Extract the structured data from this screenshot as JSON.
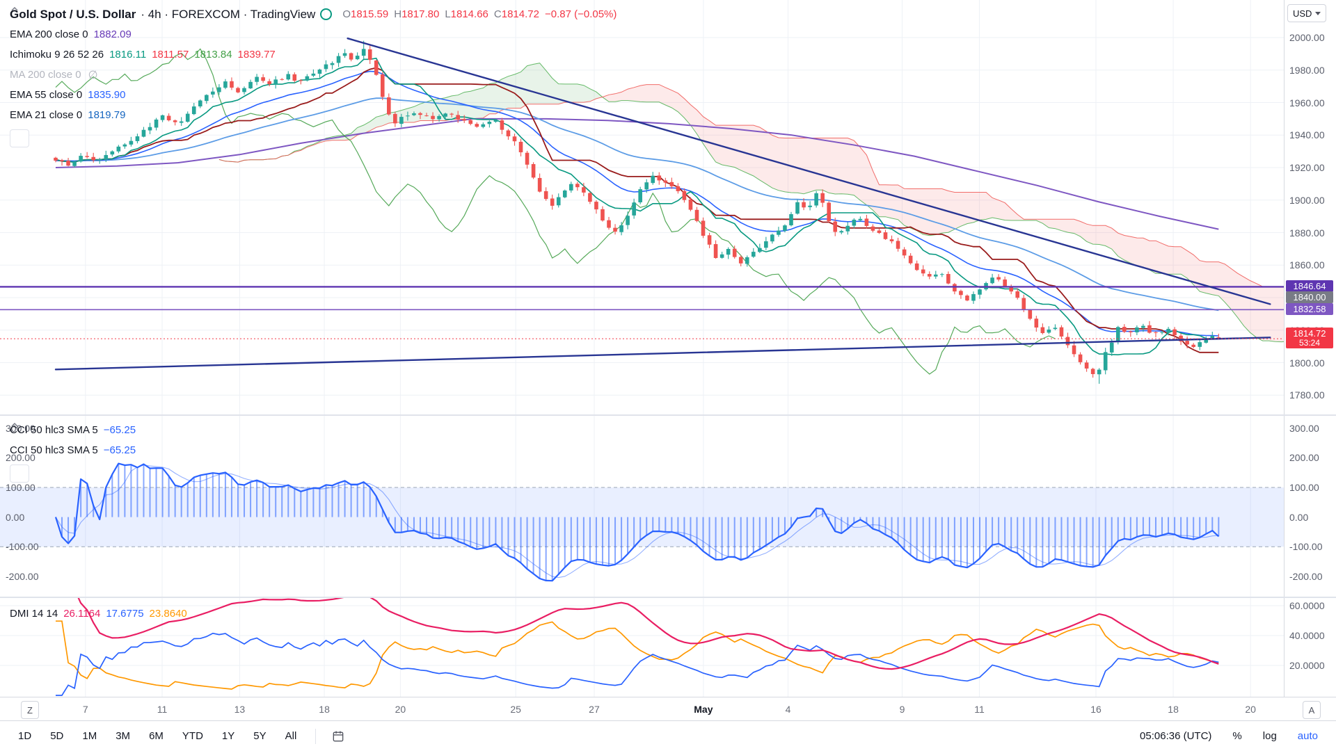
{
  "header": {
    "symbol": "Gold Spot / U.S. Dollar",
    "meta": "· 4h · FOREXCOM · TradingView",
    "ohlc": {
      "o_label": "O",
      "o": "1815.59",
      "h_label": "H",
      "h": "1817.80",
      "l_label": "L",
      "l": "1814.66",
      "c_label": "C",
      "c": "1814.72",
      "change": "−0.87 (−0.05%)"
    },
    "status_color": "#089981"
  },
  "indicators": {
    "ema200": {
      "label": "EMA 200 close 0",
      "value": "1882.09",
      "color": "#673ab7"
    },
    "ichimoku": {
      "label": "Ichimoku 9 26 52 26",
      "v1": "1816.11",
      "c1": "#089981",
      "v2": "1811.57",
      "c2": "#f23645",
      "v3": "1813.84",
      "c3": "#43a047",
      "v4": "1839.77",
      "c4": "#f23645"
    },
    "ma200": {
      "label": "MA 200 close 0",
      "hidden_icon": "∅"
    },
    "ema55": {
      "label": "EMA 55 close 0",
      "value": "1835.90",
      "color": "#2962ff"
    },
    "ema21": {
      "label": "EMA 21 close 0",
      "value": "1819.79",
      "color": "#1565c0"
    }
  },
  "cci_legend": {
    "row1_label": "CCI 50 hlc3 SMA 5",
    "row1_value": "−65.25",
    "row2_label": "CCI 50 hlc3 SMA 5",
    "row2_value": "−65.25",
    "value_color": "#2962ff"
  },
  "dmi_legend": {
    "label": "DMI 14 14",
    "adx": "26.1164",
    "adx_color": "#e91e63",
    "plus_di": "17.6775",
    "plus_color": "#2962ff",
    "minus_di": "23.8640",
    "minus_color": "#ff9800"
  },
  "price_scale": {
    "currency": "USD",
    "ticks": [
      "2000.00",
      "1980.00",
      "1960.00",
      "1940.00",
      "1920.00",
      "1900.00",
      "1880.00",
      "1860.00",
      "1840.00",
      "1820.00",
      "1800.00",
      "1780.00"
    ],
    "tags": [
      {
        "text": "1846.64",
        "price": 1846.64,
        "bg": "#5e35b1"
      },
      {
        "text": "1840.00",
        "price": 1840.0,
        "bg": "#787b86"
      },
      {
        "text": "1832.58",
        "price": 1832.58,
        "bg": "#7e57c2"
      },
      {
        "text": "1814.72",
        "price": 1814.72,
        "bg": "#f23645",
        "countdown": "53:24"
      }
    ],
    "cci_ticks": [
      "300.00",
      "200.00",
      "100.00",
      "0.00",
      "-100.00",
      "-200.00"
    ],
    "dmi_ticks": [
      "60.0000",
      "40.0000",
      "20.0000"
    ]
  },
  "time_axis": {
    "left_button": "Z",
    "right_button": "A",
    "labels": [
      {
        "text": "7",
        "u": 0.0243
      },
      {
        "text": "11",
        "u": 0.0868
      },
      {
        "text": "13",
        "u": 0.15
      },
      {
        "text": "18",
        "u": 0.219
      },
      {
        "text": "20",
        "u": 0.281
      },
      {
        "text": "25",
        "u": 0.375
      },
      {
        "text": "27",
        "u": 0.439
      },
      {
        "text": "May",
        "u": 0.528,
        "strong": true
      },
      {
        "text": "4",
        "u": 0.597
      },
      {
        "text": "9",
        "u": 0.69
      },
      {
        "text": "11",
        "u": 0.753
      },
      {
        "text": "16",
        "u": 0.848
      },
      {
        "text": "18",
        "u": 0.911
      },
      {
        "text": "20",
        "u": 0.974
      }
    ]
  },
  "toolbar": {
    "ranges": [
      "1D",
      "5D",
      "1M",
      "3M",
      "6M",
      "YTD",
      "1Y",
      "5Y",
      "All"
    ],
    "clock": "05:06:36 (UTC)",
    "percent": "%",
    "log": "log",
    "auto": "auto"
  },
  "chart_data": {
    "type": "candlestick",
    "title": "Gold Spot / U.S. Dollar · 4h · FOREXCOM",
    "interval": "4h",
    "y_ticks": [
      2000,
      1980,
      1960,
      1940,
      1920,
      1900,
      1880,
      1860,
      1840,
      1820,
      1800,
      1780
    ],
    "x_tick_labels": [
      "7",
      "11",
      "13",
      "18",
      "20",
      "25",
      "27",
      "May",
      "4",
      "9",
      "11",
      "16",
      "18",
      "20"
    ],
    "num_candles": 186,
    "candle_span_fraction": 0.948,
    "last_candle": {
      "open": 1815.59,
      "high": 1817.8,
      "low": 1814.66,
      "close": 1814.72
    },
    "extremes": {
      "peak_high": 1998.0,
      "peak_u": 0.252,
      "trough_low": 1787.0,
      "trough_u": 0.8506
    },
    "close_path_anchors": [
      [
        0.0,
        1925
      ],
      [
        0.01,
        1921
      ],
      [
        0.022,
        1928
      ],
      [
        0.034,
        1924
      ],
      [
        0.048,
        1932
      ],
      [
        0.06,
        1936
      ],
      [
        0.074,
        1944
      ],
      [
        0.087,
        1951
      ],
      [
        0.1,
        1946
      ],
      [
        0.113,
        1958
      ],
      [
        0.126,
        1966
      ],
      [
        0.138,
        1972
      ],
      [
        0.15,
        1967
      ],
      [
        0.163,
        1976
      ],
      [
        0.175,
        1971
      ],
      [
        0.188,
        1977
      ],
      [
        0.2,
        1973
      ],
      [
        0.212,
        1979
      ],
      [
        0.222,
        1983
      ],
      [
        0.233,
        1991
      ],
      [
        0.243,
        1986
      ],
      [
        0.252,
        1993
      ],
      [
        0.26,
        1981
      ],
      [
        0.268,
        1959
      ],
      [
        0.276,
        1947
      ],
      [
        0.284,
        1951
      ],
      [
        0.296,
        1954
      ],
      [
        0.308,
        1950
      ],
      [
        0.32,
        1955
      ],
      [
        0.332,
        1948
      ],
      [
        0.344,
        1946
      ],
      [
        0.356,
        1950
      ],
      [
        0.366,
        1943
      ],
      [
        0.376,
        1934
      ],
      [
        0.386,
        1918
      ],
      [
        0.396,
        1904
      ],
      [
        0.404,
        1897
      ],
      [
        0.412,
        1903
      ],
      [
        0.42,
        1910
      ],
      [
        0.43,
        1905
      ],
      [
        0.439,
        1897
      ],
      [
        0.448,
        1885
      ],
      [
        0.456,
        1881
      ],
      [
        0.466,
        1889
      ],
      [
        0.476,
        1906
      ],
      [
        0.486,
        1914
      ],
      [
        0.496,
        1912
      ],
      [
        0.506,
        1908
      ],
      [
        0.516,
        1896
      ],
      [
        0.528,
        1879
      ],
      [
        0.538,
        1864
      ],
      [
        0.548,
        1869
      ],
      [
        0.558,
        1862
      ],
      [
        0.568,
        1867
      ],
      [
        0.58,
        1874
      ],
      [
        0.59,
        1883
      ],
      [
        0.597,
        1887
      ],
      [
        0.605,
        1899
      ],
      [
        0.613,
        1894
      ],
      [
        0.621,
        1907
      ],
      [
        0.629,
        1888
      ],
      [
        0.637,
        1879
      ],
      [
        0.645,
        1884
      ],
      [
        0.655,
        1889
      ],
      [
        0.665,
        1883
      ],
      [
        0.677,
        1876
      ],
      [
        0.69,
        1869
      ],
      [
        0.7,
        1859
      ],
      [
        0.71,
        1852
      ],
      [
        0.722,
        1856
      ],
      [
        0.732,
        1844
      ],
      [
        0.742,
        1838
      ],
      [
        0.753,
        1846
      ],
      [
        0.763,
        1853
      ],
      [
        0.773,
        1848
      ],
      [
        0.783,
        1841
      ],
      [
        0.793,
        1827
      ],
      [
        0.803,
        1818
      ],
      [
        0.813,
        1823
      ],
      [
        0.823,
        1812
      ],
      [
        0.833,
        1801
      ],
      [
        0.843,
        1794
      ],
      [
        0.848,
        1791
      ],
      [
        0.856,
        1806
      ],
      [
        0.866,
        1821
      ],
      [
        0.876,
        1819
      ],
      [
        0.886,
        1823
      ],
      [
        0.896,
        1817
      ],
      [
        0.906,
        1821
      ],
      [
        0.916,
        1813
      ],
      [
        0.926,
        1809
      ],
      [
        0.936,
        1816
      ],
      [
        0.948,
        1814.72
      ]
    ],
    "overlays": {
      "ema_periods": [
        21,
        55
      ],
      "ema21_last": 1819.79,
      "ema55_last": 1835.9,
      "ema200_last": 1882.09,
      "ema200_anchors": [
        [
          0.0,
          1920
        ],
        [
          0.05,
          1921
        ],
        [
          0.1,
          1923
        ],
        [
          0.15,
          1928
        ],
        [
          0.2,
          1935
        ],
        [
          0.25,
          1941
        ],
        [
          0.3,
          1946
        ],
        [
          0.34,
          1950
        ],
        [
          0.4,
          1950
        ],
        [
          0.45,
          1949
        ],
        [
          0.5,
          1947
        ],
        [
          0.55,
          1944
        ],
        [
          0.6,
          1940
        ],
        [
          0.65,
          1934
        ],
        [
          0.7,
          1927
        ],
        [
          0.75,
          1918
        ],
        [
          0.8,
          1909
        ],
        [
          0.85,
          1899
        ],
        [
          0.9,
          1890
        ],
        [
          0.948,
          1882.09
        ]
      ],
      "ichimoku_params": [
        9,
        26,
        52,
        26
      ],
      "ichimoku_last": {
        "conversion": 1816.11,
        "base": 1811.57,
        "lagging": 1813.84,
        "lead": 1839.77
      }
    },
    "levels": {
      "purple_line_1": 1846.64,
      "gray_tag": 1840.0,
      "purple_line_2": 1832.58,
      "last_price": 1814.72
    },
    "trendlines": [
      {
        "u1": 0.238,
        "p1": 1999.5,
        "u2": 0.99,
        "p2": 1836.0
      },
      {
        "u1": 0.0,
        "p1": 1795.8,
        "u2": 0.99,
        "p2": 1815.5
      }
    ],
    "cci_pane": {
      "type": "line",
      "label": "CCI 50 hlc3 SMA 5",
      "period": 50,
      "source": "hlc3",
      "smoothing": 5,
      "band": [
        -100,
        100
      ],
      "y_ticks": [
        300,
        200,
        100,
        0,
        -100,
        -200
      ],
      "last_value": -65.25
    },
    "dmi_pane": {
      "type": "line",
      "label": "DMI 14 14",
      "period": 14,
      "adx_smoothing": 14,
      "y_ticks": [
        60,
        40,
        20
      ],
      "last_values": {
        "adx": 26.1164,
        "plus_di": 17.6775,
        "minus_di": 23.864
      }
    }
  }
}
